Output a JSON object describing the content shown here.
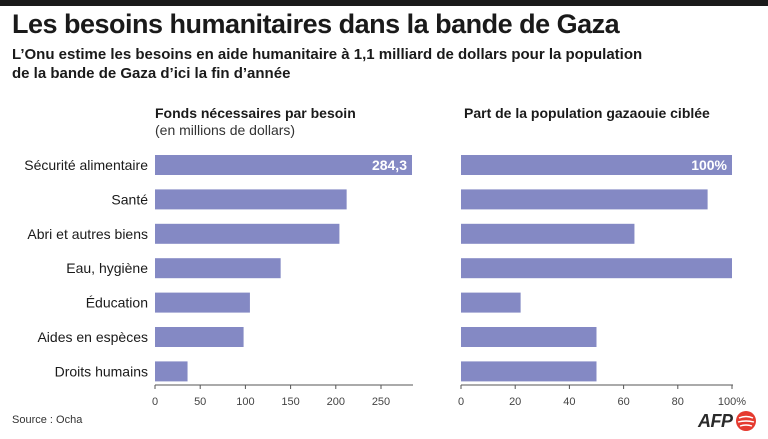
{
  "header": {
    "title": "Les besoins humanitaires dans la bande de Gaza",
    "subtitle": "L’Onu estime les besoins en aide humanitaire à 1,1 milliard de dollars pour la population de la bande de Gaza d’ici la fin d’année"
  },
  "footer": {
    "source": "Source : Ocha",
    "logo_text": "AFP"
  },
  "colors": {
    "bar": "#8489c4",
    "axis": "#555555",
    "text": "#1a1a1a",
    "label_in_bar": "#ffffff"
  },
  "chart_data": [
    {
      "type": "bar",
      "orientation": "horizontal",
      "title": "Fonds nécessaires par besoin",
      "subtitle": "(en millions de dollars)",
      "categories": [
        "Sécurité alimentaire",
        "Santé",
        "Abri et autres biens",
        "Eau, hygiène",
        "Éducation",
        "Aides en espèces",
        "Droits humains"
      ],
      "values": [
        284.3,
        212,
        204,
        139,
        105,
        98,
        36
      ],
      "data_labels": [
        "284,3",
        "",
        "",
        "",
        "",
        "",
        ""
      ],
      "xlim": [
        0,
        284.3
      ],
      "x_ticks": [
        0,
        50,
        100,
        150,
        200,
        250
      ],
      "x_tick_labels": [
        "0",
        "50",
        "100",
        "150",
        "200",
        "250"
      ],
      "grid": false
    },
    {
      "type": "bar",
      "orientation": "horizontal",
      "title": "Part de la population gazaouie ciblée",
      "categories": [
        "Sécurité alimentaire",
        "Santé",
        "Abri et autres biens",
        "Eau, hygiène",
        "Éducation",
        "Aides en espèces",
        "Droits humains"
      ],
      "values": [
        100,
        91,
        64,
        100,
        22,
        50,
        50
      ],
      "data_labels": [
        "100%",
        "",
        "",
        "",
        "",
        "",
        ""
      ],
      "xlim": [
        0,
        100
      ],
      "x_ticks": [
        0,
        20,
        40,
        60,
        80,
        100
      ],
      "x_tick_labels": [
        "0",
        "20",
        "40",
        "60",
        "80",
        "100%"
      ],
      "grid": false
    }
  ]
}
